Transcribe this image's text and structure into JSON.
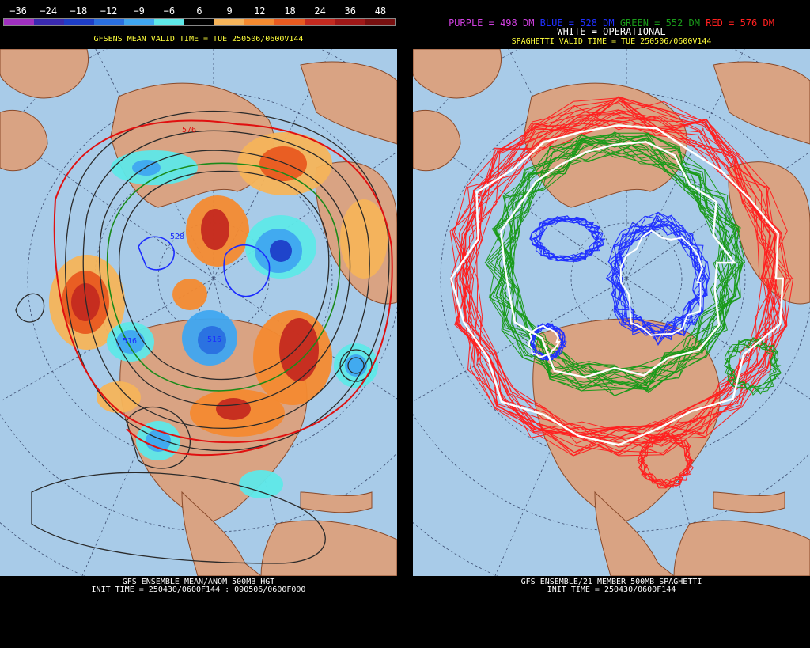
{
  "left": {
    "colorbar_labels": [
      "−36",
      "−24",
      "−18",
      "−12",
      "−9",
      "−6",
      "6",
      "9",
      "12",
      "18",
      "24",
      "36",
      "48"
    ],
    "colorbar_colors": [
      "#a030c0",
      "#3a2ab0",
      "#1e3ec8",
      "#2a6fe0",
      "#3fa6f0",
      "#5ee8e8",
      "#000000",
      "#f6b45a",
      "#f48a30",
      "#e85a20",
      "#c42a20",
      "#a01818",
      "#781010"
    ],
    "valid_title": "GFSENS MEAN VALID TIME = TUE 250506/0600V144",
    "contour_labels": [
      "576",
      "528",
      "516",
      "516"
    ],
    "bottom_title": "GFS ENSEMBLE MEAN/ANOM 500MB HGT",
    "init_line": "INIT TIME = 250430/0600F144 : 090506/0600F000"
  },
  "right": {
    "legend": {
      "purple": "PURPLE = 498 DM",
      "blue": "BLUE = 528 DM",
      "green": "GREEN = 552 DM",
      "red": "RED = 576 DM",
      "white": "WHITE = OPERATIONAL"
    },
    "colors": {
      "purple": "#d040e0",
      "blue": "#2030ff",
      "green": "#1a9a1a",
      "red": "#ff2020",
      "white": "#ffffff"
    },
    "valid_title": "SPAGHETTI VALID TIME = TUE 250506/0600V144",
    "bottom_title": "GFS ENSEMBLE/21 MEMBER 500MB SPAGHETTI",
    "init_line": "INIT TIME = 250430/0600F144"
  }
}
